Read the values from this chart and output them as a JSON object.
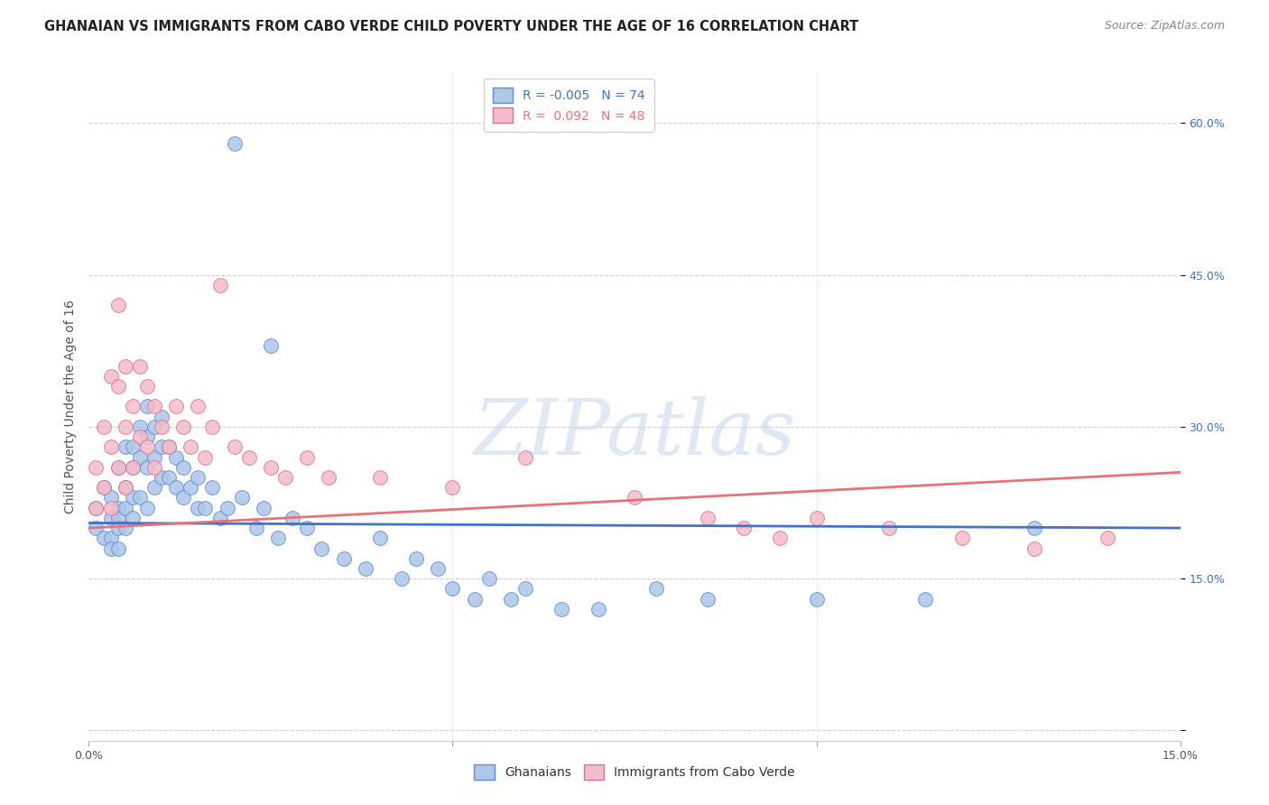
{
  "title": "GHANAIAN VS IMMIGRANTS FROM CABO VERDE CHILD POVERTY UNDER THE AGE OF 16 CORRELATION CHART",
  "source": "Source: ZipAtlas.com",
  "ylabel": "Child Poverty Under the Age of 16",
  "xmin": 0.0,
  "xmax": 0.15,
  "ymin": -0.01,
  "ymax": 0.65,
  "blue_R": -0.005,
  "blue_N": 74,
  "pink_R": 0.092,
  "pink_N": 48,
  "blue_color": "#aec6e8",
  "pink_color": "#f2bccb",
  "blue_edge_color": "#5b8ed6",
  "pink_edge_color": "#e07090",
  "blue_line_color": "#4472c4",
  "pink_line_color": "#e8727a",
  "watermark": "ZIPatlas",
  "legend_blue_label": "Ghanaians",
  "legend_pink_label": "Immigrants from Cabo Verde",
  "title_fontsize": 10.5,
  "source_fontsize": 9,
  "axis_label_fontsize": 10,
  "tick_fontsize": 9,
  "legend_fontsize": 10,
  "blue_x": [
    0.001,
    0.001,
    0.002,
    0.002,
    0.003,
    0.003,
    0.003,
    0.003,
    0.004,
    0.004,
    0.004,
    0.004,
    0.004,
    0.005,
    0.005,
    0.005,
    0.005,
    0.006,
    0.006,
    0.006,
    0.006,
    0.007,
    0.007,
    0.007,
    0.008,
    0.008,
    0.008,
    0.008,
    0.009,
    0.009,
    0.009,
    0.01,
    0.01,
    0.01,
    0.011,
    0.011,
    0.012,
    0.012,
    0.013,
    0.013,
    0.014,
    0.015,
    0.015,
    0.016,
    0.017,
    0.018,
    0.019,
    0.02,
    0.021,
    0.023,
    0.024,
    0.025,
    0.026,
    0.028,
    0.03,
    0.032,
    0.035,
    0.038,
    0.04,
    0.043,
    0.045,
    0.048,
    0.05,
    0.053,
    0.055,
    0.058,
    0.06,
    0.065,
    0.07,
    0.078,
    0.085,
    0.1,
    0.115,
    0.13
  ],
  "blue_y": [
    0.22,
    0.2,
    0.24,
    0.19,
    0.23,
    0.21,
    0.19,
    0.18,
    0.26,
    0.22,
    0.21,
    0.2,
    0.18,
    0.28,
    0.24,
    0.22,
    0.2,
    0.28,
    0.26,
    0.23,
    0.21,
    0.3,
    0.27,
    0.23,
    0.32,
    0.29,
    0.26,
    0.22,
    0.3,
    0.27,
    0.24,
    0.31,
    0.28,
    0.25,
    0.28,
    0.25,
    0.27,
    0.24,
    0.26,
    0.23,
    0.24,
    0.25,
    0.22,
    0.22,
    0.24,
    0.21,
    0.22,
    0.58,
    0.23,
    0.2,
    0.22,
    0.38,
    0.19,
    0.21,
    0.2,
    0.18,
    0.17,
    0.16,
    0.19,
    0.15,
    0.17,
    0.16,
    0.14,
    0.13,
    0.15,
    0.13,
    0.14,
    0.12,
    0.12,
    0.14,
    0.13,
    0.13,
    0.13,
    0.2
  ],
  "pink_x": [
    0.001,
    0.001,
    0.002,
    0.002,
    0.003,
    0.003,
    0.003,
    0.004,
    0.004,
    0.004,
    0.005,
    0.005,
    0.005,
    0.006,
    0.006,
    0.007,
    0.007,
    0.008,
    0.008,
    0.009,
    0.009,
    0.01,
    0.011,
    0.012,
    0.013,
    0.014,
    0.015,
    0.016,
    0.017,
    0.018,
    0.02,
    0.022,
    0.025,
    0.027,
    0.03,
    0.033,
    0.04,
    0.05,
    0.06,
    0.075,
    0.085,
    0.09,
    0.095,
    0.1,
    0.11,
    0.12,
    0.13,
    0.14
  ],
  "pink_y": [
    0.26,
    0.22,
    0.3,
    0.24,
    0.35,
    0.28,
    0.22,
    0.42,
    0.34,
    0.26,
    0.36,
    0.3,
    0.24,
    0.32,
    0.26,
    0.36,
    0.29,
    0.34,
    0.28,
    0.32,
    0.26,
    0.3,
    0.28,
    0.32,
    0.3,
    0.28,
    0.32,
    0.27,
    0.3,
    0.44,
    0.28,
    0.27,
    0.26,
    0.25,
    0.27,
    0.25,
    0.25,
    0.24,
    0.27,
    0.23,
    0.21,
    0.2,
    0.19,
    0.21,
    0.2,
    0.19,
    0.18,
    0.19
  ],
  "blue_line_y0": 0.205,
  "blue_line_y1": 0.2,
  "pink_line_y0": 0.2,
  "pink_line_y1": 0.255
}
